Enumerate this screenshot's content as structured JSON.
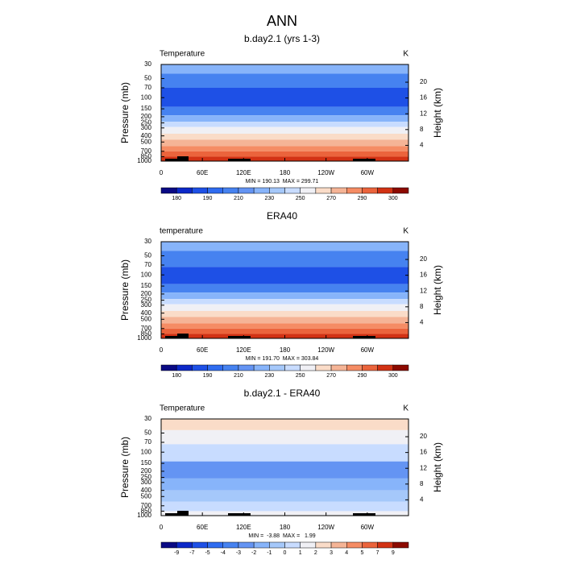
{
  "title": "ANN",
  "chart_data": [
    {
      "type": "contour",
      "title": "b.day2.1 (yrs 1-3)",
      "var_label": "Temperature",
      "unit": "K",
      "ylabel": "Pressure (mb)",
      "y2label": "Height (km)",
      "ylog": true,
      "ylim": [
        1000,
        30
      ],
      "yticks": [
        30,
        50,
        70,
        100,
        150,
        200,
        250,
        300,
        400,
        500,
        700,
        850,
        1000
      ],
      "y2lim": [
        0,
        24.5
      ],
      "y2ticks": [
        4,
        8,
        12,
        16,
        20
      ],
      "xlim": [
        0,
        360
      ],
      "xticks": [
        0,
        {
          "value": 60,
          "label": "60E"
        },
        {
          "value": 120,
          "label": "120E"
        },
        180,
        {
          "value": 240,
          "label": "120W"
        },
        {
          "value": 300,
          "label": "60W"
        }
      ],
      "stats": "MIN = 190.13  MAX = 299.71",
      "colorbar": {
        "colors": [
          "#0a0a84",
          "#0c28c8",
          "#1e50e6",
          "#2f6cf0",
          "#4682f0",
          "#6494f3",
          "#87b4fa",
          "#a5c8fa",
          "#c8dcff",
          "#f0f0f5",
          "#fadcc8",
          "#f5b496",
          "#f58c64",
          "#eb643c",
          "#d23214",
          "#8c0a00"
        ],
        "levels": [
          180,
          null,
          190,
          null,
          210,
          null,
          230,
          null,
          250,
          null,
          270,
          null,
          290,
          null,
          300
        ]
      },
      "fill": [
        {
          "from": 30,
          "to": 42,
          "level": 6
        },
        {
          "from": 42,
          "to": 70,
          "level": 4
        },
        {
          "from": 70,
          "to": 140,
          "level": 2
        },
        {
          "from": 140,
          "to": 190,
          "level": 4
        },
        {
          "from": 190,
          "to": 240,
          "level": 6
        },
        {
          "from": 240,
          "to": 290,
          "level": 8
        },
        {
          "from": 290,
          "to": 370,
          "level": 9
        },
        {
          "from": 370,
          "to": 460,
          "level": 10
        },
        {
          "from": 460,
          "to": 580,
          "level": 11
        },
        {
          "from": 580,
          "to": 700,
          "level": 12
        },
        {
          "from": 700,
          "to": 850,
          "level": 13
        },
        {
          "from": 850,
          "to": 1000,
          "level": 14
        }
      ]
    },
    {
      "type": "contour",
      "title": "ERA40",
      "var_label": "temperature",
      "unit": "K",
      "ylabel": "Pressure (mb)",
      "y2label": "Height (km)",
      "ylog": true,
      "ylim": [
        1000,
        30
      ],
      "yticks": [
        30,
        50,
        70,
        100,
        150,
        200,
        250,
        300,
        400,
        500,
        700,
        850,
        1000
      ],
      "y2lim": [
        0,
        24.5
      ],
      "y2ticks": [
        4,
        8,
        12,
        16,
        20
      ],
      "xlim": [
        0,
        360
      ],
      "xticks": [
        0,
        {
          "value": 60,
          "label": "60E"
        },
        {
          "value": 120,
          "label": "120E"
        },
        180,
        {
          "value": 240,
          "label": "120W"
        },
        {
          "value": 300,
          "label": "60W"
        }
      ],
      "stats": "MIN = 191.70  MAX = 303.84",
      "colorbar": {
        "colors": [
          "#0a0a84",
          "#0c28c8",
          "#1e50e6",
          "#2f6cf0",
          "#4682f0",
          "#6494f3",
          "#87b4fa",
          "#a5c8fa",
          "#c8dcff",
          "#f0f0f5",
          "#fadcc8",
          "#f5b496",
          "#f58c64",
          "#eb643c",
          "#d23214",
          "#8c0a00"
        ],
        "levels": [
          180,
          null,
          190,
          null,
          210,
          null,
          230,
          null,
          250,
          null,
          270,
          null,
          290,
          null,
          300
        ]
      },
      "fill": [
        {
          "from": 30,
          "to": 42,
          "level": 6
        },
        {
          "from": 42,
          "to": 75,
          "level": 4
        },
        {
          "from": 75,
          "to": 140,
          "level": 2
        },
        {
          "from": 140,
          "to": 190,
          "level": 4
        },
        {
          "from": 190,
          "to": 240,
          "level": 6
        },
        {
          "from": 240,
          "to": 290,
          "level": 8
        },
        {
          "from": 290,
          "to": 370,
          "level": 9
        },
        {
          "from": 370,
          "to": 460,
          "level": 10
        },
        {
          "from": 460,
          "to": 580,
          "level": 11
        },
        {
          "from": 580,
          "to": 700,
          "level": 12
        },
        {
          "from": 700,
          "to": 850,
          "level": 13
        },
        {
          "from": 850,
          "to": 1000,
          "level": 14
        }
      ]
    },
    {
      "type": "contour",
      "title": "b.day2.1 - ERA40",
      "var_label": "Temperature",
      "unit": "K",
      "ylabel": "Pressure (mb)",
      "y2label": "Height (km)",
      "ylog": true,
      "ylim": [
        1000,
        30
      ],
      "yticks": [
        30,
        50,
        70,
        100,
        150,
        200,
        250,
        300,
        400,
        500,
        700,
        850,
        1000
      ],
      "y2lim": [
        0,
        24.5
      ],
      "y2ticks": [
        4,
        8,
        12,
        16,
        20
      ],
      "xlim": [
        0,
        360
      ],
      "xticks": [
        0,
        {
          "value": 60,
          "label": "60E"
        },
        {
          "value": 120,
          "label": "120E"
        },
        180,
        {
          "value": 240,
          "label": "120W"
        },
        {
          "value": 300,
          "label": "60W"
        }
      ],
      "stats": "MIN =  -3.88  MAX =   1.99",
      "colorbar": {
        "colors": [
          "#0a0a84",
          "#0c28c8",
          "#1e50e6",
          "#2f6cf0",
          "#4682f0",
          "#6494f3",
          "#87b4fa",
          "#a5c8fa",
          "#c8dcff",
          "#f0f0f5",
          "#fadcc8",
          "#f5b496",
          "#f58c64",
          "#eb643c",
          "#d23214",
          "#8c0a00"
        ],
        "levels": [
          -9,
          -7,
          -5,
          -4,
          -3,
          -2,
          -1,
          0,
          1,
          2,
          3,
          4,
          5,
          7,
          9
        ]
      },
      "fill": [
        {
          "from": 30,
          "to": 45,
          "level": 10
        },
        {
          "from": 45,
          "to": 75,
          "level": 9
        },
        {
          "from": 75,
          "to": 140,
          "level": 8
        },
        {
          "from": 140,
          "to": 260,
          "level": 5
        },
        {
          "from": 260,
          "to": 400,
          "level": 6
        },
        {
          "from": 400,
          "to": 600,
          "level": 7
        },
        {
          "from": 600,
          "to": 850,
          "level": 8
        },
        {
          "from": 850,
          "to": 1000,
          "level": 9
        }
      ]
    }
  ]
}
